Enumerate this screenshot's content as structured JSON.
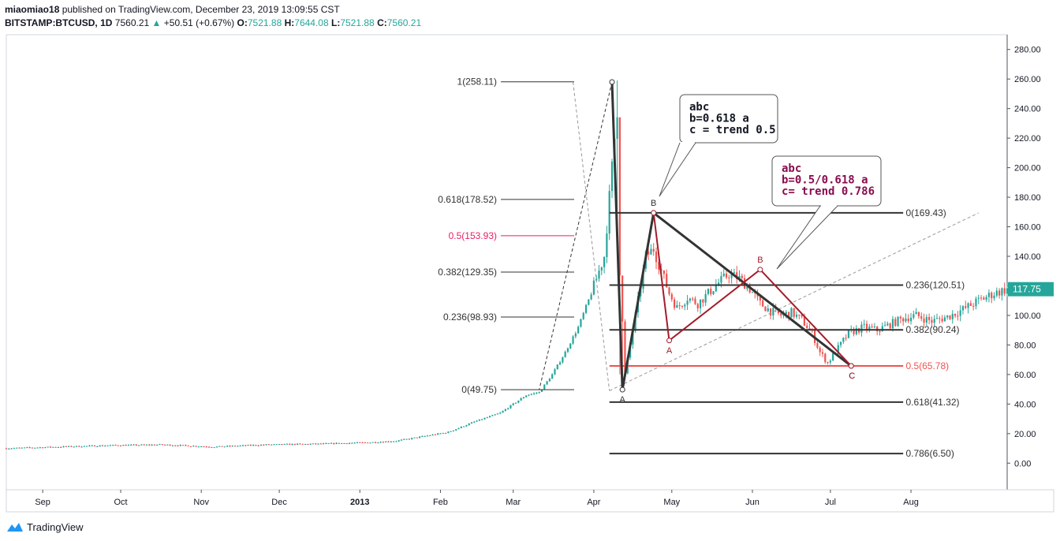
{
  "header": {
    "author": "miaomiao18",
    "published": " published on TradingView.com, December 23, 2019 13:09:55 CST",
    "symbol": "BITSTAMP:BTCUSD, 1D",
    "price": "7560.21",
    "arrow": "▲",
    "change": "+50.51 (+0.67%)",
    "o_label": "O:",
    "o_value": "7521.88",
    "h_label": "H:",
    "h_value": "7644.08",
    "l_label": "L:",
    "l_value": "7521.88",
    "c_label": "C:",
    "c_value": "7560.21"
  },
  "footer": {
    "brand": "TradingView"
  },
  "colors": {
    "up": "#26a69a",
    "down": "#ef5350",
    "dark": "#333333",
    "wave_red": "#a31d2b",
    "note_red": "#880e4f",
    "pink": "#e91e63"
  },
  "chart_data": {
    "type": "candlestick",
    "ylim": [
      -18,
      290
    ],
    "x_range_days": [
      0,
      385
    ],
    "y_ticks": [
      "0.00",
      "20.00",
      "40.00",
      "60.00",
      "80.00",
      "100.00",
      "120.00",
      "140.00",
      "160.00",
      "180.00",
      "200.00",
      "220.00",
      "240.00",
      "260.00",
      "280.00"
    ],
    "y_tick_values": [
      0,
      20,
      40,
      60,
      80,
      100,
      120,
      140,
      160,
      180,
      200,
      220,
      240,
      260,
      280
    ],
    "x_ticks": [
      {
        "label": "Sep",
        "day": 14
      },
      {
        "label": "Oct",
        "day": 44
      },
      {
        "label": "Nov",
        "day": 75
      },
      {
        "label": "Dec",
        "day": 105
      },
      {
        "label": "2013",
        "day": 136,
        "bold": true
      },
      {
        "label": "Feb",
        "day": 167
      },
      {
        "label": "Mar",
        "day": 195
      },
      {
        "label": "Apr",
        "day": 226
      },
      {
        "label": "May",
        "day": 256
      },
      {
        "label": "Jun",
        "day": 287
      },
      {
        "label": "Jul",
        "day": 317
      },
      {
        "label": "Aug",
        "day": 348
      }
    ],
    "last_price_label": "117.75",
    "last_price": 117.75,
    "price_path": [
      [
        0,
        10
      ],
      [
        20,
        11
      ],
      [
        40,
        12
      ],
      [
        60,
        12.5
      ],
      [
        80,
        11
      ],
      [
        100,
        12.5
      ],
      [
        120,
        13
      ],
      [
        140,
        14
      ],
      [
        150,
        15
      ],
      [
        160,
        18
      ],
      [
        170,
        21
      ],
      [
        180,
        28
      ],
      [
        190,
        34
      ],
      [
        200,
        46
      ],
      [
        205,
        48
      ],
      [
        210,
        60
      ],
      [
        215,
        75
      ],
      [
        220,
        92
      ],
      [
        225,
        115
      ],
      [
        230,
        140
      ],
      [
        233,
        200
      ],
      [
        235,
        240
      ],
      [
        236,
        130
      ],
      [
        238,
        60
      ],
      [
        240,
        80
      ],
      [
        243,
        110
      ],
      [
        246,
        140
      ],
      [
        249,
        145
      ],
      [
        252,
        130
      ],
      [
        255,
        115
      ],
      [
        258,
        105
      ],
      [
        262,
        112
      ],
      [
        266,
        108
      ],
      [
        270,
        115
      ],
      [
        274,
        122
      ],
      [
        278,
        128
      ],
      [
        282,
        125
      ],
      [
        286,
        118
      ],
      [
        290,
        108
      ],
      [
        294,
        103
      ],
      [
        298,
        100
      ],
      [
        302,
        102
      ],
      [
        306,
        97
      ],
      [
        310,
        88
      ],
      [
        313,
        75
      ],
      [
        316,
        68
      ],
      [
        320,
        78
      ],
      [
        324,
        88
      ],
      [
        330,
        92
      ],
      [
        335,
        90
      ],
      [
        340,
        94
      ],
      [
        345,
        98
      ],
      [
        350,
        100
      ],
      [
        356,
        96
      ],
      [
        362,
        99
      ],
      [
        368,
        104
      ],
      [
        374,
        110
      ],
      [
        380,
        115
      ],
      [
        385,
        117.75
      ]
    ],
    "fib_left": [
      {
        "label": "1(258.11)",
        "value": 258.11,
        "color": "#333333"
      },
      {
        "label": "0.618(178.52)",
        "value": 178.52,
        "color": "#333333"
      },
      {
        "label": "0.5(153.93)",
        "value": 153.93,
        "color": "#e91e63"
      },
      {
        "label": "0.382(129.35)",
        "value": 129.35,
        "color": "#333333"
      },
      {
        "label": "0.236(98.93)",
        "value": 98.93,
        "color": "#333333"
      },
      {
        "label": "0(49.75)",
        "value": 49.75,
        "color": "#333333"
      }
    ],
    "fib_right": [
      {
        "label": "0(169.43)",
        "value": 169.43,
        "color": "#333333"
      },
      {
        "label": "0.236(120.51)",
        "value": 120.51,
        "color": "#333333"
      },
      {
        "label": "0.382(90.24)",
        "value": 90.24,
        "color": "#333333"
      },
      {
        "label": "0.5(65.78)",
        "value": 65.78,
        "color": "#ef5350"
      },
      {
        "label": "0.618(41.32)",
        "value": 41.32,
        "color": "#333333"
      },
      {
        "label": "0.786(6.50)",
        "value": 6.5,
        "color": "#333333"
      }
    ],
    "big_wave": {
      "points": [
        [
          233,
          258
        ],
        [
          237,
          49.75
        ],
        [
          249,
          169.4
        ],
        [
          325,
          65.8
        ]
      ],
      "labels": [
        {
          "text": "A",
          "i": 1
        },
        {
          "text": "B",
          "i": 2
        },
        {
          "text": "C",
          "i": 3
        }
      ]
    },
    "small_wave": {
      "points": [
        [
          249,
          169.4
        ],
        [
          255,
          83
        ],
        [
          290,
          131
        ],
        [
          325,
          65.8
        ]
      ],
      "labels": [
        {
          "text": "A",
          "i": 1
        },
        {
          "text": "B",
          "i": 2
        },
        {
          "text": "C",
          "i": 3
        }
      ]
    },
    "notes": [
      {
        "lines": [
          "abc",
          "b=0.618 a",
          "c = trend 0.5"
        ],
        "color": "#131722"
      },
      {
        "lines": [
          "abc",
          "b=0.5/0.618 a",
          "c= trend 0.786"
        ],
        "color": "#880e4f"
      }
    ]
  }
}
